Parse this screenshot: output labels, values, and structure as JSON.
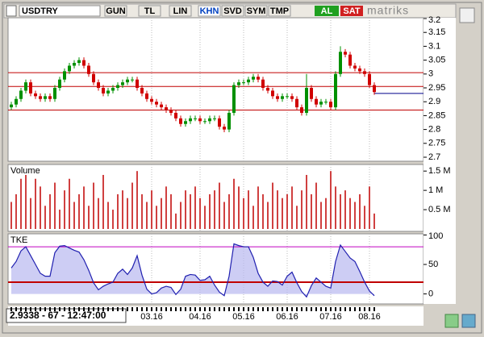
{
  "toolbar": {
    "symbol": "USDTRY",
    "buttons": [
      "GUN",
      "TL",
      "LIN",
      "KHN",
      "SVD",
      "SYM",
      "TMP"
    ],
    "buy": "AL",
    "sell": "SAT",
    "brand": "matriks"
  },
  "status": "2.9338 - 67 - 12:47:00",
  "chart_data": {
    "type": "candlestick",
    "categories": [
      null,
      null,
      null,
      null,
      null,
      null,
      null,
      null,
      null,
      null,
      null,
      null,
      null,
      null,
      null,
      null,
      null,
      null,
      null,
      null,
      null,
      null,
      null,
      null,
      null,
      null,
      null,
      null,
      null,
      "03.16",
      null,
      null,
      null,
      null,
      null,
      null,
      null,
      null,
      null,
      "04.16",
      null,
      null,
      null,
      null,
      null,
      null,
      null,
      null,
      "05.16",
      null,
      null,
      null,
      null,
      null,
      null,
      null,
      null,
      "06.16",
      null,
      null,
      null,
      null,
      null,
      null,
      null,
      null,
      "07.16",
      null,
      null,
      null,
      null,
      null,
      null,
      null,
      "08.16",
      null
    ],
    "open": [
      2.88,
      2.89,
      2.91,
      2.94,
      2.97,
      2.93,
      2.92,
      2.91,
      2.92,
      2.91,
      2.95,
      2.98,
      3.01,
      3.03,
      3.04,
      3.05,
      3.03,
      3.0,
      2.97,
      2.95,
      2.93,
      2.94,
      2.95,
      2.96,
      2.97,
      2.98,
      2.98,
      2.95,
      2.93,
      2.91,
      2.9,
      2.89,
      2.88,
      2.87,
      2.86,
      2.84,
      2.82,
      2.83,
      2.84,
      2.84,
      2.83,
      2.83,
      2.84,
      2.84,
      2.81,
      2.8,
      2.86,
      2.96,
      2.97,
      2.97,
      2.98,
      2.99,
      2.98,
      2.95,
      2.94,
      2.92,
      2.91,
      2.92,
      2.92,
      2.91,
      2.88,
      2.86,
      2.95,
      2.91,
      2.89,
      2.9,
      2.9,
      2.88,
      3.0,
      3.08,
      3.07,
      3.03,
      3.02,
      3.01,
      3.0,
      2.96
    ],
    "high": [
      2.9,
      2.92,
      2.95,
      2.98,
      2.98,
      2.94,
      2.93,
      2.93,
      2.93,
      2.96,
      2.99,
      3.02,
      3.04,
      3.05,
      3.06,
      3.06,
      3.04,
      3.01,
      2.98,
      2.96,
      2.95,
      2.96,
      2.97,
      2.98,
      2.99,
      2.99,
      2.99,
      2.96,
      2.94,
      2.92,
      2.91,
      2.9,
      2.89,
      2.88,
      2.87,
      2.85,
      2.84,
      2.85,
      2.85,
      2.85,
      2.84,
      2.85,
      2.85,
      2.85,
      2.82,
      2.87,
      2.97,
      2.98,
      2.98,
      2.99,
      3.0,
      3.0,
      2.99,
      2.96,
      2.95,
      2.93,
      2.93,
      2.93,
      2.93,
      2.92,
      2.89,
      3.0,
      2.96,
      2.92,
      2.91,
      2.91,
      2.91,
      3.01,
      3.1,
      3.09,
      3.08,
      3.04,
      3.03,
      3.02,
      3.01,
      2.97
    ],
    "low": [
      2.87,
      2.88,
      2.9,
      2.93,
      2.92,
      2.91,
      2.9,
      2.9,
      2.9,
      2.9,
      2.94,
      2.97,
      3.0,
      3.02,
      3.03,
      3.02,
      2.99,
      2.96,
      2.94,
      2.92,
      2.92,
      2.93,
      2.94,
      2.95,
      2.96,
      2.97,
      2.94,
      2.92,
      2.9,
      2.89,
      2.88,
      2.87,
      2.86,
      2.85,
      2.83,
      2.81,
      2.81,
      2.82,
      2.83,
      2.82,
      2.82,
      2.82,
      2.83,
      2.8,
      2.79,
      2.79,
      2.85,
      2.95,
      2.96,
      2.96,
      2.97,
      2.97,
      2.94,
      2.93,
      2.91,
      2.9,
      2.9,
      2.91,
      2.9,
      2.87,
      2.85,
      2.85,
      2.9,
      2.88,
      2.88,
      2.89,
      2.87,
      2.87,
      2.99,
      3.06,
      3.02,
      3.01,
      3.0,
      2.99,
      2.95,
      2.925
    ],
    "close": [
      2.89,
      2.91,
      2.94,
      2.97,
      2.93,
      2.92,
      2.91,
      2.92,
      2.91,
      2.95,
      2.98,
      3.01,
      3.03,
      3.04,
      3.05,
      3.03,
      3.0,
      2.97,
      2.95,
      2.93,
      2.94,
      2.95,
      2.96,
      2.97,
      2.98,
      2.98,
      2.95,
      2.93,
      2.91,
      2.9,
      2.89,
      2.88,
      2.87,
      2.86,
      2.84,
      2.82,
      2.83,
      2.84,
      2.84,
      2.83,
      2.83,
      2.84,
      2.84,
      2.81,
      2.8,
      2.86,
      2.96,
      2.97,
      2.97,
      2.98,
      2.99,
      2.98,
      2.95,
      2.94,
      2.92,
      2.91,
      2.92,
      2.92,
      2.91,
      2.88,
      2.86,
      2.95,
      2.91,
      2.89,
      2.9,
      2.9,
      2.88,
      3.0,
      3.08,
      3.07,
      3.03,
      3.02,
      3.01,
      3.0,
      2.96,
      2.935
    ],
    "up_color": "#009000",
    "down_color": "#d00000",
    "ylim": [
      2.7,
      3.2
    ],
    "yticks": [
      2.7,
      2.75,
      2.8,
      2.85,
      2.9,
      2.95,
      3,
      3.05,
      3.1,
      3.15,
      3.2
    ],
    "hlines": [
      3.005,
      2.955,
      2.87
    ],
    "hline_color": "#c00000",
    "last_line": 2.93,
    "last_line_color": "#00008b",
    "volume": {
      "label": "Volume",
      "color": "#c00000",
      "ylim": [
        0,
        1650000
      ],
      "yticks": [
        {
          "value": 500000,
          "label": "0.5 M"
        },
        {
          "value": 1000000,
          "label": "1 M"
        },
        {
          "value": 1500000,
          "label": "1.5 M"
        }
      ],
      "values": [
        700000,
        900000,
        1300000,
        1400000,
        800000,
        1300000,
        1100000,
        600000,
        900000,
        1200000,
        500000,
        1000000,
        1300000,
        700000,
        900000,
        1100000,
        600000,
        1200000,
        800000,
        1400000,
        700000,
        500000,
        900000,
        1000000,
        800000,
        1200000,
        1500000,
        900000,
        700000,
        1000000,
        600000,
        800000,
        1100000,
        900000,
        400000,
        700000,
        1000000,
        900000,
        1100000,
        800000,
        600000,
        900000,
        1000000,
        1200000,
        700000,
        900000,
        1300000,
        1100000,
        800000,
        1000000,
        600000,
        1100000,
        900000,
        700000,
        1200000,
        1000000,
        800000,
        900000,
        1100000,
        600000,
        1000000,
        1400000,
        900000,
        1200000,
        700000,
        800000,
        1500000,
        1100000,
        900000,
        1000000,
        800000,
        700000,
        900000,
        600000,
        1100000,
        400000
      ]
    },
    "tke": {
      "label": "TKE",
      "color": "#2020b0",
      "fill": "#b8b8f0",
      "ylim": [
        -17,
        102
      ],
      "yticks": [
        0,
        50,
        100
      ],
      "levels": [
        80,
        20
      ],
      "level_colors": [
        "#c000c0",
        "#c00000"
      ],
      "values": [
        44,
        55,
        73,
        80,
        65,
        50,
        35,
        30,
        30,
        70,
        81,
        82,
        78,
        74,
        71,
        58,
        40,
        19,
        7,
        13,
        17,
        20,
        35,
        42,
        33,
        44,
        65,
        32,
        8,
        0,
        2,
        10,
        13,
        11,
        -1,
        8,
        30,
        33,
        32,
        23,
        24,
        30,
        15,
        3,
        -3,
        30,
        85,
        82,
        80,
        80,
        62,
        35,
        20,
        13,
        22,
        21,
        15,
        30,
        37,
        19,
        4,
        -5,
        14,
        27,
        20,
        13,
        10,
        55,
        83,
        72,
        61,
        55,
        38,
        20,
        5,
        -3
      ]
    }
  }
}
